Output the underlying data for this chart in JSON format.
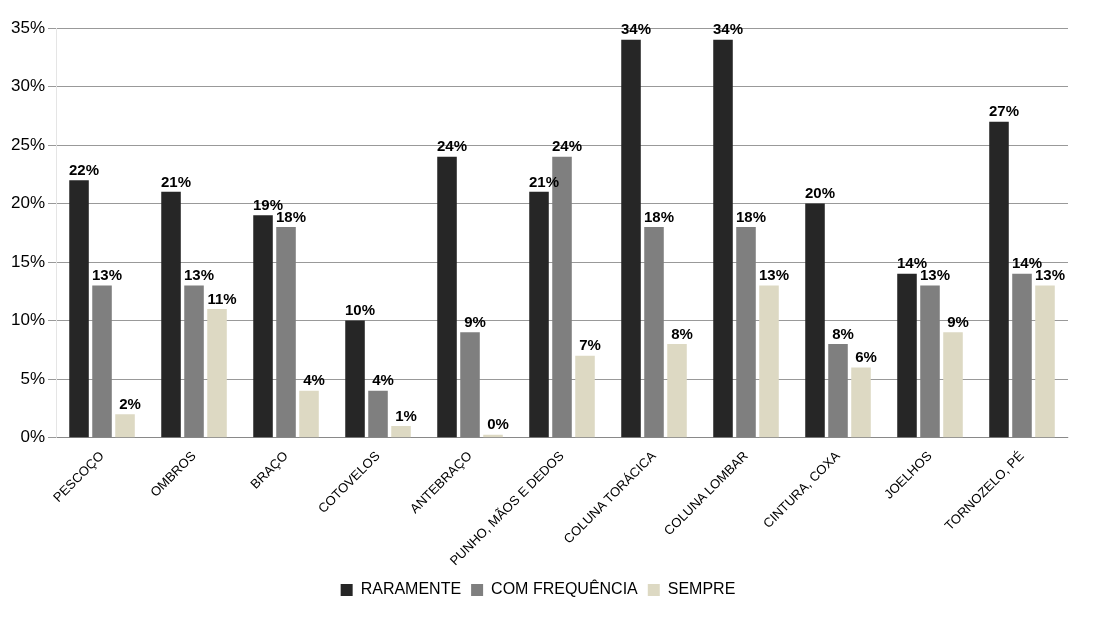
{
  "chart_data": {
    "type": "bar",
    "categories": [
      "PESCOÇO",
      "OMBROS",
      "BRAÇO",
      "COTOVELOS",
      "ANTEBRAÇO",
      "PUNHO, MÃOS E DEDOS",
      "COLUNA TORÁCICA",
      "COLUNA LOMBAR",
      "CINTURA, COXA",
      "JOELHOS",
      "TORNOZELO, PÉ"
    ],
    "series": [
      {
        "name": "RARAMENTE",
        "color": "#262626",
        "values": [
          22,
          21,
          19,
          10,
          24,
          21,
          34,
          34,
          20,
          14,
          27
        ],
        "value_labels": [
          "22%",
          "21%",
          "19%",
          "10%",
          "24%",
          "21%",
          "34%",
          "34%",
          "20%",
          "14%",
          "27%"
        ]
      },
      {
        "name": "COM FREQUÊNCIA",
        "color": "#7f7f7f",
        "values": [
          13,
          13,
          18,
          4,
          9,
          24,
          18,
          18,
          8,
          13,
          14
        ],
        "value_labels": [
          "13%",
          "13%",
          "18%",
          "4%",
          "9%",
          "24%",
          "18%",
          "18%",
          "8%",
          "13%",
          "14%"
        ]
      },
      {
        "name": "SEMPRE",
        "color": "#ddd9c3",
        "values": [
          2,
          11,
          4,
          1,
          0,
          7,
          8,
          13,
          6,
          9,
          13
        ],
        "value_labels": [
          "2%",
          "11%",
          "4%",
          "1%",
          "0%",
          "7%",
          "8%",
          "13%",
          "6%",
          "9%",
          "13%"
        ]
      }
    ],
    "ylim": [
      0,
      35
    ],
    "yticks": [
      {
        "value": 0,
        "label": "0%"
      },
      {
        "value": 5,
        "label": "5%"
      },
      {
        "value": 10,
        "label": "10%"
      },
      {
        "value": 15,
        "label": "15%"
      },
      {
        "value": 20,
        "label": "20%"
      },
      {
        "value": 25,
        "label": "25%"
      },
      {
        "value": 30,
        "label": "30%"
      },
      {
        "value": 35,
        "label": "35%"
      }
    ],
    "grid": "y",
    "legend": "bottom"
  }
}
